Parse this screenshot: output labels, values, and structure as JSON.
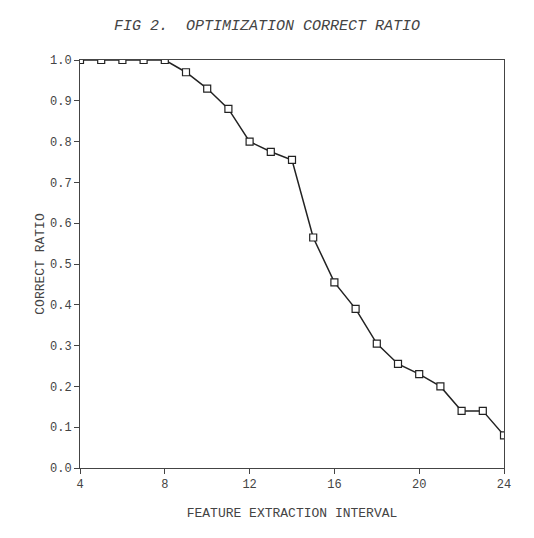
{
  "chart_data": {
    "type": "line",
    "title": "FIG 2.  OPTIMIZATION CORRECT RATIO",
    "xlabel": "FEATURE EXTRACTION INTERVAL",
    "ylabel": "CORRECT RATIO",
    "x": [
      4,
      5,
      6,
      7,
      8,
      9,
      10,
      11,
      12,
      13,
      14,
      15,
      16,
      17,
      18,
      19,
      20,
      21,
      22,
      23,
      24
    ],
    "values": [
      1.0,
      1.0,
      1.0,
      1.0,
      1.0,
      0.97,
      0.93,
      0.88,
      0.8,
      0.775,
      0.755,
      0.565,
      0.455,
      0.39,
      0.305,
      0.255,
      0.23,
      0.2,
      0.14,
      0.14,
      0.08
    ],
    "xlim": [
      4,
      24
    ],
    "ylim": [
      0.0,
      1.0
    ],
    "xticks": [
      4,
      8,
      12,
      16,
      20,
      24
    ],
    "yticks": [
      {
        "value": 0.0,
        "label": "0.0"
      },
      0.1,
      0.2,
      0.3,
      0.4,
      0.5,
      0.6,
      0.7,
      0.8,
      0.9,
      {
        "value": 1.0,
        "label": "1.0"
      }
    ],
    "color": "#222222",
    "marker": "square",
    "line_style": "solid",
    "grid": false
  }
}
